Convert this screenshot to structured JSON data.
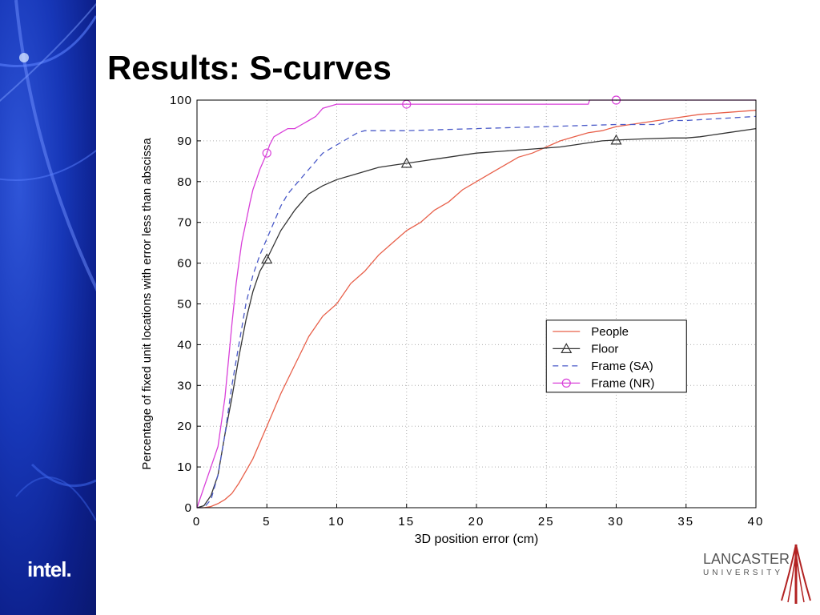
{
  "slide": {
    "title": "Results: S-curves",
    "intel_logo_text": "intel.",
    "lancaster_name": "LANCASTER",
    "lancaster_sub": "UNIVERSITY"
  },
  "colors": {
    "sidebar_blue": "#1737b8",
    "people": "#e8604a",
    "floor": "#333333",
    "frame_sa": "#4a5ac8",
    "frame_nr": "#d940d9",
    "lancaster_red": "#b22222"
  },
  "chart_data": {
    "type": "line",
    "xlabel": "3D position error (cm)",
    "ylabel": "Percentage of fixed unit locations with error less than abscissa",
    "xlim": [
      0,
      40
    ],
    "ylim": [
      0,
      100
    ],
    "xticks": [
      "0",
      "5",
      "10",
      "15",
      "20",
      "25",
      "30",
      "35",
      "40"
    ],
    "yticks": [
      "0",
      "10",
      "20",
      "30",
      "40",
      "50",
      "60",
      "70",
      "80",
      "90",
      "100"
    ],
    "grid": true,
    "legend_position": "lower-right",
    "series": [
      {
        "name": "People",
        "style": "solid",
        "marker": "none",
        "x": [
          0,
          0.5,
          1,
          1.5,
          2,
          2.5,
          3,
          3.5,
          4,
          5,
          6,
          7,
          8,
          9,
          10,
          11,
          12,
          13,
          14,
          15,
          16,
          17,
          18,
          19,
          20,
          21,
          22,
          23,
          24,
          25,
          26,
          27,
          28,
          29,
          30,
          32,
          34,
          36,
          38,
          40
        ],
        "y": [
          0,
          0,
          0.3,
          1,
          2,
          3.5,
          6,
          9,
          12,
          20,
          28,
          35,
          42,
          47,
          50,
          55,
          58,
          62,
          65,
          68,
          70,
          73,
          75,
          78,
          80,
          82,
          84,
          86,
          87,
          88.5,
          90,
          91,
          92,
          92.5,
          93.5,
          94.5,
          95.5,
          96.5,
          97,
          97.5
        ]
      },
      {
        "name": "Floor",
        "style": "solid",
        "marker": "triangle",
        "marker_x": [
          5,
          15,
          30
        ],
        "x": [
          0,
          0.5,
          1,
          1.5,
          2,
          2.5,
          3,
          3.5,
          4,
          4.5,
          5,
          6,
          7,
          8,
          9,
          10,
          11,
          12,
          13,
          14,
          15,
          16,
          17,
          18,
          19,
          20,
          22,
          24,
          26,
          27,
          28,
          29,
          30,
          32,
          34,
          35,
          36,
          38,
          40
        ],
        "y": [
          0,
          0.5,
          3,
          8,
          18,
          27,
          37,
          46,
          53,
          58,
          61,
          68,
          73,
          77,
          79,
          80.5,
          81.5,
          82.5,
          83.5,
          84,
          84.5,
          85,
          85.5,
          86,
          86.5,
          87,
          87.5,
          88,
          88.5,
          89,
          89.5,
          90,
          90.2,
          90.5,
          90.7,
          90.7,
          91,
          92,
          93
        ]
      },
      {
        "name": "Frame (SA)",
        "style": "dashed",
        "marker": "none",
        "x": [
          0,
          0.5,
          1,
          1.5,
          2,
          2.5,
          3,
          3.5,
          4,
          4.5,
          5,
          5.5,
          6,
          6.5,
          7,
          8,
          8.5,
          9,
          10,
          11,
          11.5,
          12,
          13,
          14,
          15,
          20,
          25,
          30,
          33,
          34,
          35,
          40
        ],
        "y": [
          0,
          0,
          2,
          8,
          18,
          30,
          40,
          50,
          57,
          62,
          66,
          70,
          74,
          77,
          79,
          83,
          85,
          87,
          89,
          91,
          92,
          92.5,
          92.5,
          92.5,
          92.5,
          93,
          93.5,
          94,
          94,
          95,
          95,
          96
        ]
      },
      {
        "name": "Frame (NR)",
        "style": "solid",
        "marker": "circle",
        "marker_x": [
          5,
          15,
          30
        ],
        "x": [
          0,
          0.5,
          1,
          1.5,
          2,
          2.5,
          2.8,
          3,
          3.2,
          3.5,
          3.8,
          4,
          4.2,
          4.5,
          5,
          5.2,
          5.5,
          6,
          6.5,
          7,
          7.5,
          8,
          8.5,
          9,
          10,
          12,
          15,
          20,
          25,
          28,
          28.1,
          30,
          35,
          40
        ],
        "y": [
          0,
          5,
          10,
          15,
          27,
          45,
          55,
          60,
          65,
          70,
          75,
          78,
          80,
          83,
          87,
          89,
          91,
          92,
          93,
          93,
          94,
          95,
          96,
          98,
          99,
          99,
          99,
          99,
          99,
          99,
          100,
          100,
          100,
          100
        ]
      }
    ]
  }
}
